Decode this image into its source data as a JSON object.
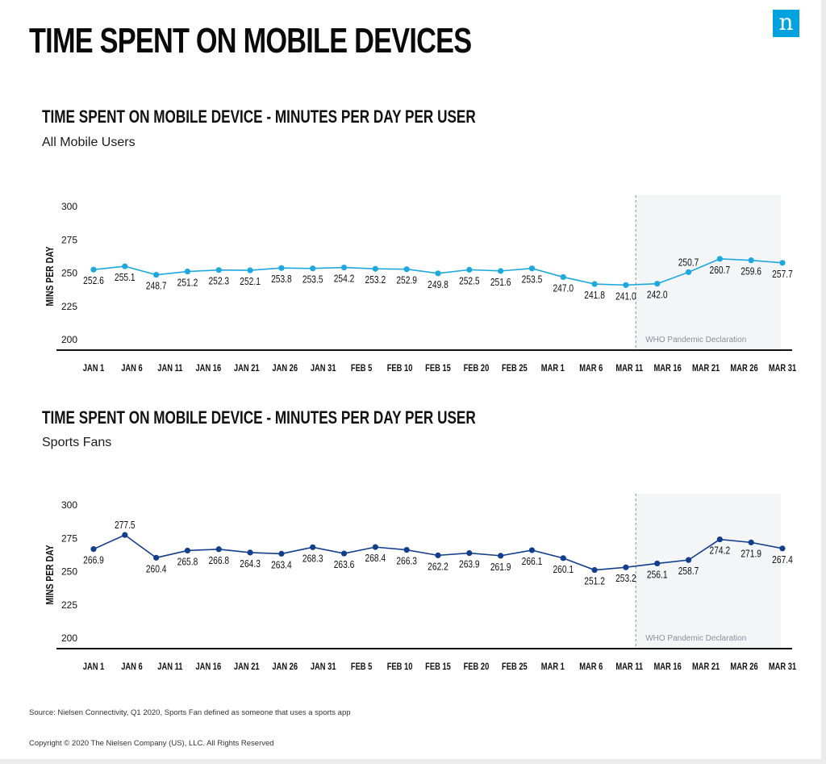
{
  "header": {
    "title": "TIME SPENT ON MOBILE DEVICES",
    "logo_text": "n"
  },
  "footer": {
    "source": "Source: Nielsen Connectivity, Q1 2020, Sports Fan defined as someone that uses a sports app",
    "copyright": "Copyright © 2020 The Nielsen Company (US), LLC. All Rights Reserved"
  },
  "chart_data": [
    {
      "type": "line",
      "title": "TIME SPENT ON MOBILE DEVICE - MINUTES PER DAY PER USER",
      "subtitle": "All Mobile Users",
      "ylabel": "MINS PER DAY",
      "ylim": [
        200,
        300
      ],
      "yticks": [
        "300",
        "275",
        "250",
        "225",
        "200"
      ],
      "grid": false,
      "color": "#1ea8de",
      "x_tick_labels": [
        "JAN 1",
        "JAN 6",
        "JAN 11",
        "JAN 16",
        "JAN 21",
        "JAN 26",
        "JAN 31",
        "FEB 5",
        "FEB 10",
        "FEB 15",
        "FEB 20",
        "FEB 25",
        "MAR 1",
        "MAR 6",
        "MAR 11",
        "MAR 16",
        "MAR 21",
        "MAR 26",
        "MAR 31"
      ],
      "values": [
        252.6,
        255.1,
        248.7,
        251.2,
        252.3,
        252.1,
        253.8,
        253.5,
        254.2,
        253.2,
        252.9,
        249.8,
        252.5,
        251.6,
        253.5,
        247.0,
        241.8,
        241.0,
        242.0,
        250.7,
        260.7,
        259.6,
        257.7
      ],
      "value_labels": [
        "252.6",
        "255.1",
        "248.7",
        "251.2",
        "252.3",
        "252.1",
        "253.8",
        "253.5",
        "254.2",
        "253.2",
        "252.9",
        "249.8",
        "252.5",
        "251.6",
        "253.5",
        "247.0",
        "241.8",
        "241.0",
        "242.0",
        "250.7",
        "260.7",
        "259.6",
        "257.7"
      ],
      "label_above": [
        false,
        false,
        false,
        false,
        false,
        false,
        false,
        false,
        false,
        false,
        false,
        false,
        false,
        false,
        false,
        false,
        false,
        false,
        false,
        true,
        false,
        false,
        false
      ],
      "annotation": "WHO Pandemic Declaration",
      "annotation_start_x": "MAR 11"
    },
    {
      "type": "line",
      "title": "TIME SPENT ON MOBILE DEVICE - MINUTES PER DAY PER USER",
      "subtitle": "Sports Fans",
      "ylabel": "MINS PER DAY",
      "ylim": [
        200,
        300
      ],
      "yticks": [
        "300",
        "275",
        "250",
        "225",
        "200"
      ],
      "grid": false,
      "color": "#123e8c",
      "x_tick_labels": [
        "JAN 1",
        "JAN 6",
        "JAN 11",
        "JAN 16",
        "JAN 21",
        "JAN 26",
        "JAN 31",
        "FEB 5",
        "FEB 10",
        "FEB 15",
        "FEB 20",
        "FEB 25",
        "MAR 1",
        "MAR 6",
        "MAR 11",
        "MAR 16",
        "MAR 21",
        "MAR 26",
        "MAR 31"
      ],
      "values": [
        266.9,
        277.5,
        260.4,
        265.8,
        266.8,
        264.3,
        263.4,
        268.3,
        263.6,
        268.4,
        266.3,
        262.2,
        263.9,
        261.9,
        266.1,
        260.1,
        251.2,
        253.2,
        256.1,
        258.7,
        274.2,
        271.9,
        267.4
      ],
      "value_labels": [
        "266.9",
        "277.5",
        "260.4",
        "265.8",
        "266.8",
        "264.3",
        "263.4",
        "268.3",
        "263.6",
        "268.4",
        "266.3",
        "262.2",
        "263.9",
        "261.9",
        "266.1",
        "260.1",
        "251.2",
        "253.2",
        "256.1",
        "258.7",
        "274.2",
        "271.9",
        "267.4"
      ],
      "label_above": [
        false,
        true,
        false,
        false,
        false,
        false,
        false,
        false,
        false,
        false,
        false,
        false,
        false,
        false,
        false,
        false,
        false,
        false,
        false,
        false,
        false,
        false,
        false
      ],
      "annotation": "WHO Pandemic Declaration",
      "annotation_start_x": "MAR 11"
    }
  ]
}
